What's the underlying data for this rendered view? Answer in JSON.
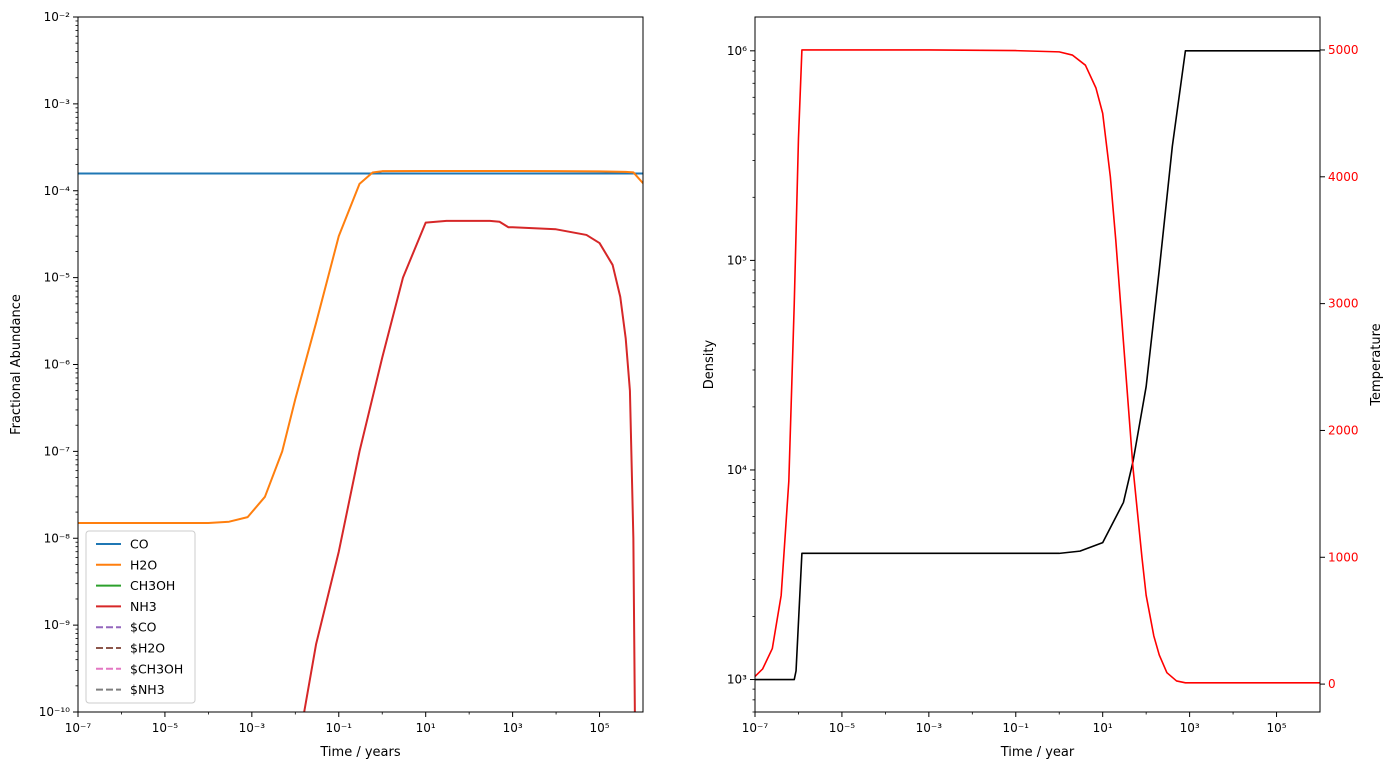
{
  "chart_data": [
    {
      "type": "line",
      "xlabel": "Time / years",
      "ylabel": "Fractional Abundance",
      "xscale": "log",
      "yscale": "log",
      "xlim": [
        1e-07,
        1000000.0
      ],
      "ylim": [
        1e-10,
        0.01
      ],
      "xtick_labels": [
        "10⁻⁷",
        "10⁻⁵",
        "10⁻³",
        "10⁻¹",
        "10¹",
        "10³",
        "10⁵"
      ],
      "ytick_labels": [
        "10⁻¹⁰",
        "10⁻⁹",
        "10⁻⁸",
        "10⁻⁷",
        "10⁻⁶",
        "10⁻⁵",
        "10⁻⁴",
        "10⁻³",
        "10⁻²"
      ],
      "legend": "lower-left",
      "series": [
        {
          "name": "CO",
          "color": "#1f77b4",
          "dash": "solid",
          "x": [
            1e-07,
            1000000.0
          ],
          "y": [
            0.000158,
            0.000158
          ]
        },
        {
          "name": "H2O",
          "color": "#ff7f0e",
          "dash": "solid",
          "x": [
            1e-07,
            0.0001,
            0.0003,
            0.0008,
            0.002,
            0.005,
            0.01,
            0.03,
            0.1,
            0.3,
            0.6,
            1,
            10,
            100,
            1000,
            10000.0,
            100000.0,
            400000.0,
            600000.0,
            1000000.0
          ],
          "y": [
            1.5e-08,
            1.5e-08,
            1.55e-08,
            1.75e-08,
            3e-08,
            1e-07,
            4e-07,
            3e-06,
            3e-05,
            0.00012,
            0.000162,
            0.000168,
            0.000169,
            0.000169,
            0.000169,
            0.000168,
            0.000167,
            0.000165,
            0.000163,
            0.000122
          ]
        },
        {
          "name": "CH3OH",
          "color": "#2ca02c",
          "dash": "solid",
          "x": [],
          "y": []
        },
        {
          "name": "NH3",
          "color": "#d62728",
          "dash": "solid",
          "x": [
            0.016,
            0.03,
            0.1,
            0.3,
            1,
            3,
            10,
            30,
            100,
            300,
            500,
            800,
            1000,
            10000.0,
            50000.0,
            100000.0,
            200000.0,
            300000.0,
            400000.0,
            500000.0,
            600000.0,
            650000.0
          ],
          "y": [
            1e-10,
            6e-10,
            7e-09,
            1e-07,
            1.2e-06,
            1e-05,
            4.3e-05,
            4.5e-05,
            4.5e-05,
            4.5e-05,
            4.4e-05,
            3.8e-05,
            3.8e-05,
            3.6e-05,
            3.1e-05,
            2.5e-05,
            1.4e-05,
            6e-06,
            2e-06,
            5e-07,
            1e-08,
            1e-10
          ]
        },
        {
          "name": "$CO",
          "color": "#9467bd",
          "dash": "dashed",
          "x": [],
          "y": []
        },
        {
          "name": "$H2O",
          "color": "#8c564b",
          "dash": "dashed",
          "x": [],
          "y": []
        },
        {
          "name": "$CH3OH",
          "color": "#e377c2",
          "dash": "dashed",
          "x": [],
          "y": []
        },
        {
          "name": "$NH3",
          "color": "#7f7f7f",
          "dash": "dashed",
          "x": [],
          "y": []
        }
      ]
    },
    {
      "type": "line",
      "xlabel": "Time / year",
      "ylabel": "Density",
      "y2label": "Temperature",
      "xscale": "log",
      "yscale": "log",
      "xlim": [
        1e-07,
        1000000.0
      ],
      "ylim": [
        700,
        1450000.0
      ],
      "y2lim": [
        -220,
        5260
      ],
      "xtick_labels": [
        "10⁻⁷",
        "10⁻⁵",
        "10⁻³",
        "10⁻¹",
        "10¹",
        "10³",
        "10⁵"
      ],
      "ytick_labels": [
        "10³",
        "10⁴",
        "10⁵",
        "10⁶"
      ],
      "y2_ticks": [
        0,
        1000,
        2000,
        3000,
        4000,
        5000
      ],
      "y2_tick_labels": [
        "0",
        "1000",
        "2000",
        "3000",
        "4000",
        "5000"
      ],
      "y2_color": "#ff0000",
      "series": [
        {
          "name": "Density",
          "color": "#000000",
          "axis": "left",
          "x": [
            1e-07,
            8e-07,
            8.8e-07,
            1.2e-06,
            1,
            3,
            10,
            30,
            50,
            100,
            200,
            400,
            800,
            1000000.0
          ],
          "y": [
            1000,
            1000,
            1100,
            4000,
            4000,
            4100,
            4500,
            7000,
            11000,
            25000,
            90000,
            350000,
            1000000,
            1000000
          ]
        },
        {
          "name": "Temperature",
          "color": "#ff0000",
          "axis": "right",
          "x": [
            1e-07,
            1.5e-07,
            2.5e-07,
            4e-07,
            6e-07,
            8e-07,
            1e-06,
            1.2e-06,
            0.001,
            0.1,
            1,
            2,
            4,
            7,
            10,
            15,
            20,
            30,
            50,
            80,
            100,
            150,
            200,
            300,
            500,
            800,
            1000,
            1000000.0
          ],
          "y": [
            60,
            120,
            280,
            700,
            1600,
            3000,
            4300,
            5000,
            5000,
            4995,
            4985,
            4960,
            4880,
            4700,
            4500,
            4000,
            3500,
            2700,
            1700,
            1000,
            700,
            380,
            230,
            90,
            25,
            10,
            10,
            10
          ]
        }
      ]
    }
  ]
}
